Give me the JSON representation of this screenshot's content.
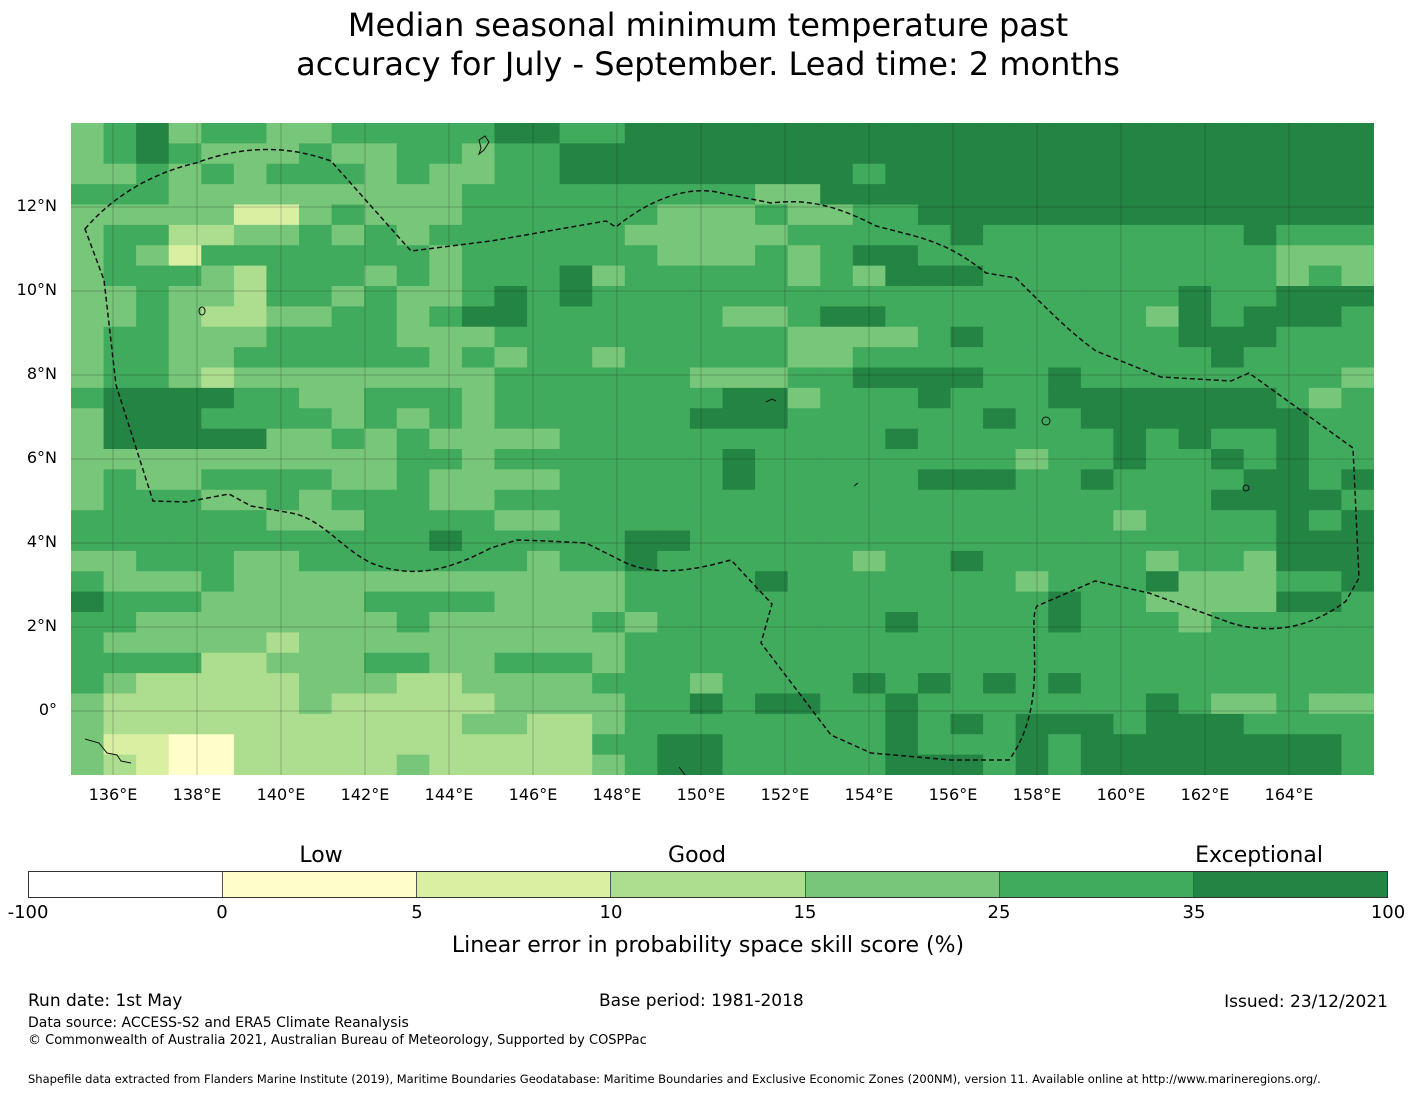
{
  "title_line1": "Median seasonal minimum temperature past",
  "title_line2": "accuracy for July - September. Lead time: 2 months",
  "map": {
    "lat_labels": [
      "12°N",
      "10°N",
      "8°N",
      "6°N",
      "4°N",
      "2°N",
      "0°"
    ],
    "lon_labels": [
      "136°E",
      "138°E",
      "140°E",
      "142°E",
      "144°E",
      "146°E",
      "148°E",
      "150°E",
      "152°E",
      "154°E",
      "156°E",
      "158°E",
      "160°E",
      "162°E",
      "164°E"
    ],
    "palette": [
      "#ffffff",
      "#ffffcc",
      "#d9f0a3",
      "#addd8e",
      "#78c679",
      "#41ab5d",
      "#238443"
    ],
    "grid_rows": [
      "4564554455555665566666666666666666666666",
      "4565444544554556666666666666666666666666",
      "4454545554544556666666665666666666666666",
      "5554444444445555555554466666666666666666",
      "4444422454445555554445445566666666666666",
      "4553344545455555544444555556555555556555",
      "4542555555545555554445456655555555555444",
      "4555435554545556455555454666555555555454",
      "4454435545445656555555555555555555655666",
      "4454334455456655555544566555555554656665",
      "4554445555444555555555444456555555666555",
      "4554455555545455455555445555555555565555",
      "4554344444444555555444556666556555555554",
      "5666655445554555555566455565556666666545",
      "4666555545454555555666555555655666666655",
      "4666664454544445555555555655555565655655",
      "4444444444554555555565555555545565565655",
      "4544555544544445555565555566655655556656",
      "4555445455544555555555555555555555566665",
      "5555554445555445555555555555555545555656",
      "5555555555565555566555555555555555555666",
      "4455544555555545565555554556555554554666",
      "5444544444444444455556555555545556444556",
      "6555444445555444455555555555556554444665",
      "5544444444544444545555555655556555455555",
      "5444443444444444455555555555555555555555",
      "5555334445544555455555555555555555555555",
      "5433333444334444555455556565656555555555",
      "4333333433333444455656655655555556544544",
      "4333333333334433455555555656566656665555",
      "4221133333333333556655555655565666666665",
      "4321133333433333456655555666565666666665"
    ]
  },
  "legend": {
    "low": "Low",
    "good": "Good",
    "exceptional": "Exceptional",
    "ticks": [
      "-100",
      "0",
      "5",
      "10",
      "15",
      "25",
      "35",
      "100"
    ],
    "colors": [
      "#ffffff",
      "#ffffcc",
      "#d9f0a3",
      "#addd8e",
      "#78c679",
      "#41ab5d",
      "#238443"
    ],
    "label": "Linear error in probability space skill score (%)"
  },
  "footer": {
    "run_date": "Run date: 1st May",
    "base_period": "Base period: 1981-2018",
    "issued": "Issued: 23/12/2021",
    "data_source": "Data source: ACCESS-S2 and ERA5 Climate Reanalysis",
    "copyright": "© Commonwealth of Australia 2021, Australian Bureau of Meteorology, Supported by COSPPac",
    "shapefile": "Shapefile data extracted from Flanders Marine Institute (2019), Maritime Boundaries Geodatabase: Maritime Boundaries and Exclusive Economic Zones (200NM), version 11. Available online at http://www.marineregions.org/."
  }
}
